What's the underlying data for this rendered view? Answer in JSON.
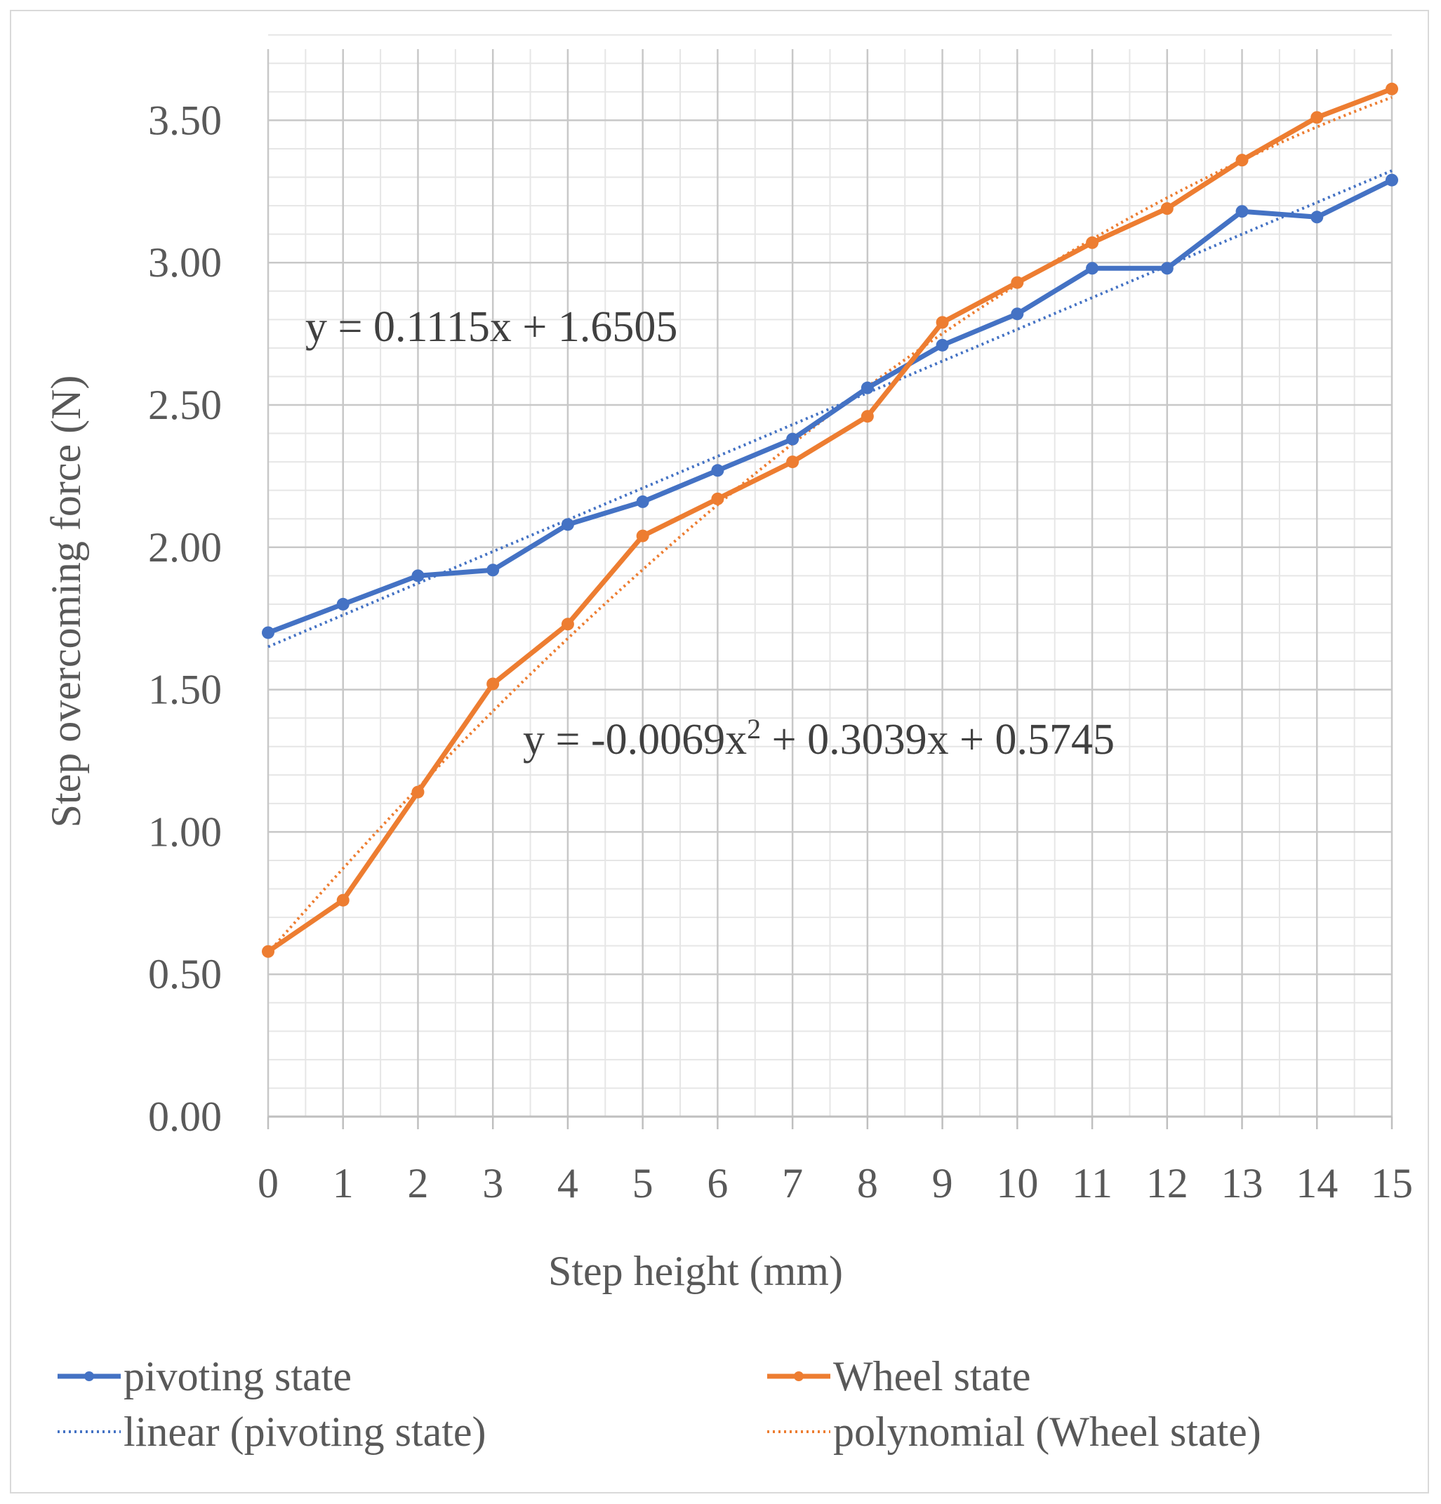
{
  "chart_data": {
    "type": "line",
    "title": "",
    "xlabel": "Step height (mm)",
    "ylabel": "Step overcoming force (N)",
    "x": [
      0,
      1,
      2,
      3,
      4,
      5,
      6,
      7,
      8,
      9,
      10,
      11,
      12,
      13,
      14,
      15
    ],
    "x_tick_labels": [
      "0",
      "1",
      "2",
      "3",
      "4",
      "5",
      "6",
      "7",
      "8",
      "9",
      "10",
      "11",
      "12",
      "13",
      "14",
      "15"
    ],
    "y_tick_labels": [
      "0.00",
      "0.50",
      "1.00",
      "1.50",
      "2.00",
      "2.50",
      "3.00",
      "3.50"
    ],
    "xlim": [
      0,
      15
    ],
    "ylim": [
      0,
      3.75
    ],
    "grid": true,
    "series": [
      {
        "name": "pivoting state",
        "color": "#4472C4",
        "values": [
          1.7,
          1.8,
          1.9,
          1.92,
          2.08,
          2.16,
          2.27,
          2.38,
          2.56,
          2.71,
          2.82,
          2.98,
          2.98,
          3.18,
          3.16,
          3.29
        ]
      },
      {
        "name": "Wheel state",
        "color": "#ED7D31",
        "values": [
          0.58,
          0.76,
          1.14,
          1.52,
          1.73,
          2.04,
          2.17,
          2.3,
          2.46,
          2.79,
          2.93,
          3.07,
          3.19,
          3.36,
          3.51,
          3.61
        ]
      }
    ],
    "trendlines": [
      {
        "name": "linear (pivoting state)",
        "color": "#4472C4",
        "kind": "linear",
        "coefficients": [
          1.6505,
          0.1115
        ],
        "equation": "y = 0.1115x + 1.6505"
      },
      {
        "name": "polynomial (Wheel state)",
        "color": "#ED7D31",
        "kind": "poly2",
        "coefficients": [
          0.5745,
          0.3039,
          -0.0069
        ],
        "equation_prefix": "y = -0.0069x",
        "equation_sup": "2",
        "equation_suffix": " + 0.3039x + 0.5745"
      }
    ],
    "legend": {
      "position": "bottom",
      "entries": [
        "pivoting state",
        "Wheel state",
        "linear (pivoting state)",
        "polynomial (Wheel state)"
      ]
    }
  }
}
